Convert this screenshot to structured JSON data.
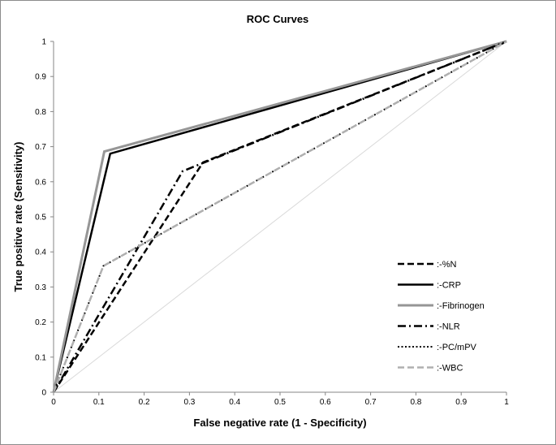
{
  "chart_data": {
    "type": "line",
    "title": "ROC Curves",
    "xlabel": "False negative rate (1 - Specificity)",
    "ylabel": "True positive rate (Sensitivity)",
    "xlim": [
      0,
      1
    ],
    "ylim": [
      0,
      1
    ],
    "xticks": [
      "0",
      "0.1",
      "0.2",
      "0.3",
      "0.4",
      "0.5",
      "0.6",
      "0.7",
      "0.8",
      "0.9",
      "1"
    ],
    "yticks": [
      "0",
      "0.1",
      "0.2",
      "0.3",
      "0.4",
      "0.5",
      "0.6",
      "0.7",
      "0.8",
      "0.9",
      "1"
    ],
    "grid": false,
    "legend_position": "bottom-right",
    "reference_line": {
      "x": [
        0,
        1
      ],
      "y": [
        0,
        1
      ],
      "color": "#d9d9d9"
    },
    "series": [
      {
        "name": ":-%N",
        "x": [
          0,
          0.33,
          1
        ],
        "y": [
          0,
          0.655,
          1
        ],
        "color": "#000000",
        "dash": "dashed",
        "width": 2.5
      },
      {
        "name": ":-CRP",
        "x": [
          0,
          0.125,
          1
        ],
        "y": [
          0,
          0.68,
          1
        ],
        "color": "#000000",
        "dash": "solid",
        "width": 2.5
      },
      {
        "name": ":-Fibrinogen",
        "x": [
          0,
          0.112,
          1
        ],
        "y": [
          0,
          0.686,
          1
        ],
        "color": "#969696",
        "dash": "solid",
        "width": 3
      },
      {
        "name": ":-NLR",
        "x": [
          0,
          0.285,
          1
        ],
        "y": [
          0,
          0.63,
          1
        ],
        "color": "#000000",
        "dash": "dashdot",
        "width": 2.5
      },
      {
        "name": ":-PC/mPV",
        "x": [
          0,
          0.11,
          1
        ],
        "y": [
          0,
          0.36,
          1
        ],
        "color": "#000000",
        "dash": "dotted",
        "width": 2
      },
      {
        "name": ":-WBC",
        "x": [
          0,
          0.11,
          1
        ],
        "y": [
          0,
          0.36,
          1
        ],
        "color": "#b0b0b0",
        "dash": "dashed",
        "width": 2.5
      }
    ]
  }
}
